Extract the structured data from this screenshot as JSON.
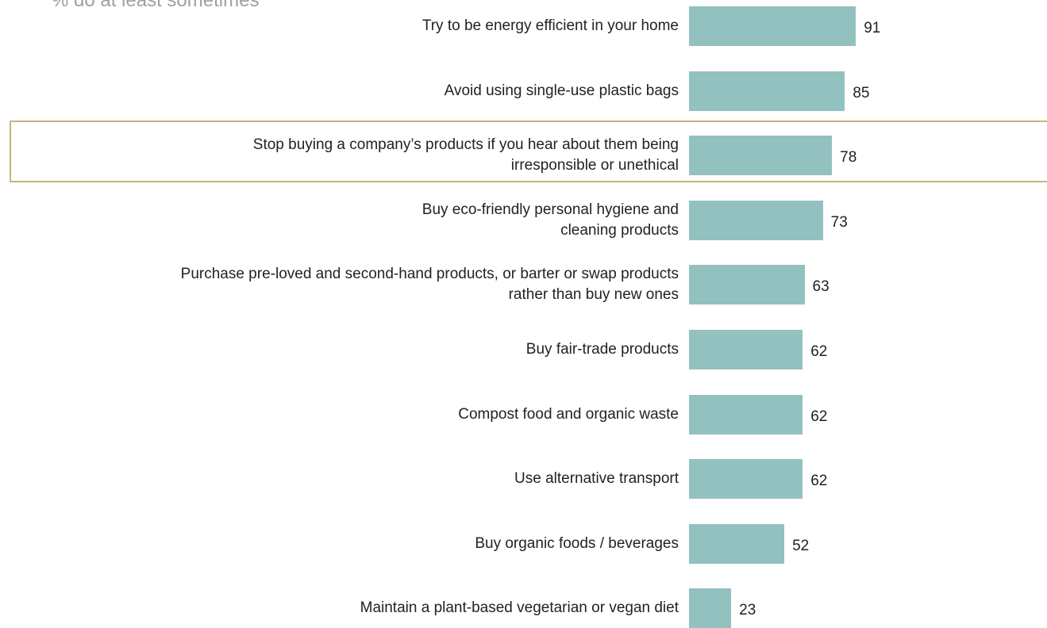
{
  "chart_data": {
    "type": "barh",
    "subtitle": "% do at least sometimes",
    "categories": [
      "Try to be energy efficient in your home",
      "Avoid using single-use plastic bags",
      "Stop buying a company’s products if you hear about them being\nirresponsible or unethical",
      "Buy eco-friendly personal hygiene and\ncleaning products",
      "Purchase pre-loved and second-hand products, or barter or swap products\nrather than buy new ones",
      "Buy fair-trade products",
      "Compost food and organic waste",
      "Use alternative transport",
      "Buy organic foods / beverages",
      "Maintain a plant-based vegetarian or vegan diet"
    ],
    "values": [
      91,
      85,
      78,
      73,
      63,
      62,
      62,
      62,
      52,
      23
    ],
    "color": "#93c1bf"
  }
}
